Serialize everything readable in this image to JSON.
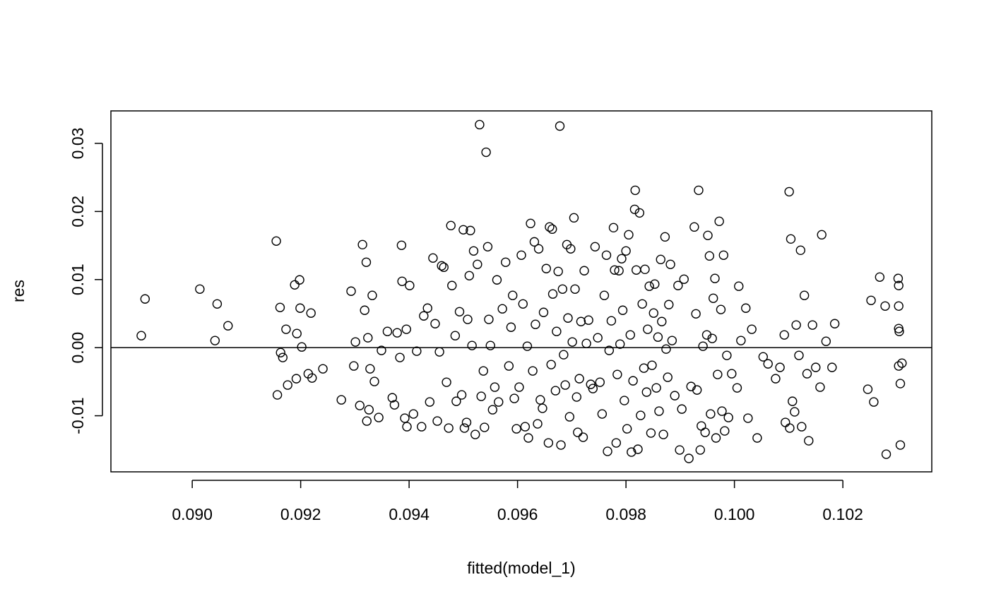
{
  "chart_data": {
    "type": "scatter",
    "x_label": "fitted(model_1)",
    "y_label": "res",
    "xlim": [
      0.0885,
      0.10364
    ],
    "ylim": [
      -0.01824,
      0.03477
    ],
    "xticks": [
      {
        "value": 0.09,
        "label": "0.090"
      },
      0.092,
      0.094,
      0.096,
      0.098,
      {
        "value": 0.1,
        "label": "0.100"
      },
      0.102
    ],
    "yticks": [
      -0.01,
      {
        "value": 0,
        "label": "0.00"
      },
      0.01,
      0.02,
      0.03
    ],
    "hline": 0,
    "color": "#000000",
    "x": [
      0.08906,
      0.08913,
      0.09014,
      0.09042,
      0.09046,
      0.09066,
      0.09155,
      0.09157,
      0.09162,
      0.09163,
      0.09167,
      0.09173,
      0.09176,
      0.09189,
      0.09192,
      0.09198,
      0.09193,
      0.09199,
      0.09202,
      0.09214,
      0.09219,
      0.09221,
      0.09241,
      0.09275,
      0.09293,
      0.09298,
      0.09301,
      0.09309,
      0.09314,
      0.09318,
      0.09321,
      0.09322,
      0.09324,
      0.09326,
      0.09328,
      0.09332,
      0.09336,
      0.09344,
      0.09349,
      0.0936,
      0.09369,
      0.09373,
      0.09378,
      0.09383,
      0.09386,
      0.09387,
      0.09392,
      0.09395,
      0.09396,
      0.09401,
      0.09408,
      0.09414,
      0.09423,
      0.09427,
      0.09434,
      0.09438,
      0.09444,
      0.09448,
      0.09452,
      0.09456,
      0.0946,
      0.09464,
      0.09469,
      0.09473,
      0.09477,
      0.09479,
      0.09485,
      0.09487,
      0.09493,
      0.09497,
      0.095,
      0.09502,
      0.09506,
      0.09508,
      0.09511,
      0.09513,
      0.09516,
      0.09519,
      0.09522,
      0.09526,
      0.0953,
      0.09533,
      0.09537,
      0.09539,
      0.09542,
      0.09545,
      0.09547,
      0.0955,
      0.09554,
      0.09558,
      0.09562,
      0.09565,
      0.09572,
      0.09578,
      0.09584,
      0.09588,
      0.09591,
      0.09594,
      0.09598,
      0.09603,
      0.09607,
      0.0961,
      0.09614,
      0.09618,
      0.0962,
      0.09624,
      0.09628,
      0.09631,
      0.09633,
      0.09637,
      0.09639,
      0.09642,
      0.09646,
      0.09648,
      0.09653,
      0.09657,
      0.09659,
      0.09662,
      0.09664,
      0.09665,
      0.0967,
      0.09672,
      0.09675,
      0.09678,
      0.0968,
      0.09683,
      0.09685,
      0.09688,
      0.09691,
      0.09693,
      0.09696,
      0.09698,
      0.09701,
      0.09704,
      0.09706,
      0.09709,
      0.09711,
      0.09714,
      0.09717,
      0.09721,
      0.09723,
      0.09727,
      0.09731,
      0.09735,
      0.09739,
      0.09743,
      0.09748,
      0.09752,
      0.09756,
      0.0976,
      0.09764,
      0.09766,
      0.09769,
      0.09773,
      0.09777,
      0.09779,
      0.09782,
      0.09784,
      0.09787,
      0.09789,
      0.09792,
      0.09794,
      0.09797,
      0.098,
      0.09802,
      0.09805,
      0.09808,
      0.0981,
      0.09813,
      0.09816,
      0.09817,
      0.09819,
      0.09822,
      0.09825,
      0.09827,
      0.0983,
      0.09833,
      0.09835,
      0.09838,
      0.0984,
      0.09843,
      0.09846,
      0.09848,
      0.09851,
      0.09853,
      0.09856,
      0.09859,
      0.09861,
      0.09864,
      0.09866,
      0.09869,
      0.09872,
      0.09874,
      0.09877,
      0.09879,
      0.09882,
      0.09885,
      0.0989,
      0.09896,
      0.09899,
      0.09903,
      0.09907,
      0.09916,
      0.0992,
      0.09926,
      0.09929,
      0.09931,
      0.09934,
      0.09937,
      0.09939,
      0.09942,
      0.09946,
      0.09949,
      0.09951,
      0.09954,
      0.09956,
      0.09959,
      0.09961,
      0.09964,
      0.09966,
      0.09969,
      0.09972,
      0.09975,
      0.09977,
      0.0998,
      0.09982,
      0.09986,
      0.09989,
      0.09995,
      0.10005,
      0.10008,
      0.10012,
      0.10021,
      0.10025,
      0.10032,
      0.10042,
      0.10053,
      0.10062,
      0.10076,
      0.10084,
      0.10092,
      0.10094,
      0.10101,
      0.10102,
      0.10104,
      0.10107,
      0.10111,
      0.10114,
      0.10119,
      0.10122,
      0.10124,
      0.10129,
      0.10134,
      0.10137,
      0.10144,
      0.1015,
      0.10158,
      0.10161,
      0.10169,
      0.1018,
      0.10185,
      0.10246,
      0.10252,
      0.10257,
      0.10268,
      0.10278,
      0.1028,
      0.10302,
      0.10303,
      0.10303,
      0.10303,
      0.10304,
      0.10303,
      0.10306,
      0.10306,
      0.10309
    ],
    "y": [
      0.00176,
      0.00715,
      0.0086,
      0.00104,
      0.00642,
      0.00321,
      0.01565,
      -0.00694,
      0.0059,
      -0.00073,
      -0.00145,
      0.0027,
      -0.00549,
      0.00922,
      -0.00456,
      0.00995,
      0.00207,
      0.0058,
      0.0001,
      -0.00383,
      0.00508,
      -0.00446,
      -0.00311,
      -0.00767,
      0.00829,
      -0.00269,
      0.00083,
      -0.0085,
      0.01513,
      0.00549,
      0.01254,
      -0.01078,
      0.00145,
      -0.00912,
      -0.00311,
      0.00767,
      -0.00497,
      -0.01026,
      -0.00041,
      0.00238,
      -0.00736,
      -0.0084,
      0.00218,
      -0.00145,
      0.01503,
      0.00974,
      -0.01036,
      0.0027,
      -0.01161,
      0.00912,
      -0.00974,
      -0.00052,
      -0.01161,
      0.00466,
      0.0058,
      -0.00798,
      0.01316,
      0.00352,
      -0.01078,
      -0.00062,
      0.01202,
      0.01181,
      -0.00508,
      -0.01181,
      0.01793,
      0.00912,
      0.00176,
      -0.00788,
      0.00528,
      -0.00694,
      0.01731,
      -0.01181,
      -0.01098,
      0.00415,
      0.01057,
      0.0172,
      0.00031,
      0.0142,
      -0.01275,
      0.01223,
      0.03275,
      -0.00715,
      -0.00342,
      -0.01171,
      0.0287,
      0.01482,
      0.00415,
      0.00031,
      -0.00912,
      -0.0058,
      0.00995,
      -0.00798,
      0.0057,
      0.01254,
      -0.00269,
      0.003,
      0.00767,
      -0.00746,
      -0.01192,
      -0.0058,
      0.01358,
      0.00642,
      -0.01161,
      0.00021,
      -0.01326,
      0.01824,
      -0.00342,
      0.01554,
      0.00342,
      -0.01119,
      0.01451,
      -0.00767,
      -0.00891,
      0.00518,
      0.01161,
      -0.01399,
      0.01772,
      -0.00249,
      0.01741,
      0.00788,
      -0.00632,
      0.00238,
      0.01119,
      0.03254,
      -0.0143,
      0.0086,
      -0.00104,
      -0.00549,
      0.01513,
      0.00435,
      -0.01016,
      0.01451,
      0.00083,
      0.01907,
      0.0086,
      -0.00725,
      -0.01244,
      -0.00456,
      0.00383,
      -0.01316,
      0.0113,
      0.00062,
      0.00404,
      -0.00539,
      -0.00601,
      0.01482,
      0.00145,
      -0.00508,
      -0.00974,
      0.00767,
      0.01358,
      -0.01523,
      -0.00041,
      0.00394,
      0.01762,
      0.0114,
      -0.01399,
      -0.00394,
      0.0113,
      0.00052,
      0.01306,
      0.00549,
      -0.00777,
      0.0142,
      -0.01192,
      0.01658,
      0.00187,
      -0.01534,
      -0.00487,
      0.02031,
      0.02311,
      0.0114,
      -0.01492,
      0.01979,
      -0.00995,
      0.00642,
      -0.00301,
      0.0115,
      -0.00653,
      0.0027,
      0.00902,
      -0.01254,
      -0.00259,
      0.00508,
      0.00933,
      -0.00591,
      0.00155,
      -0.00933,
      0.01295,
      0.00383,
      -0.01275,
      0.01627,
      -0.00021,
      -0.00435,
      0.00632,
      0.01223,
      0.00104,
      -0.00705,
      0.00912,
      -0.01503,
      -0.00902,
      0.01005,
      -0.01627,
      -0.0057,
      0.01772,
      0.00497,
      -0.00622,
      0.02311,
      -0.01503,
      -0.0115,
      0.00021,
      -0.01244,
      0.00187,
      0.01648,
      0.01347,
      -0.00974,
      0.00135,
      0.00725,
      0.01016,
      -0.01326,
      -0.00394,
      0.01855,
      0.0056,
      -0.00933,
      0.01358,
      -0.01223,
      -0.00114,
      -0.01026,
      -0.00383,
      -0.00591,
      0.00902,
      0.00104,
      0.0058,
      -0.01036,
      0.0027,
      -0.01326,
      -0.00135,
      -0.00238,
      -0.00456,
      -0.0029,
      0.00187,
      -0.01098,
      0.0229,
      -0.01181,
      0.01596,
      -0.00788,
      -0.00943,
      0.00332,
      -0.00114,
      0.0143,
      -0.01161,
      0.00767,
      -0.00383,
      -0.01368,
      0.00332,
      -0.0029,
      -0.0058,
      0.01658,
      0.00093,
      -0.0029,
      0.00352,
      -0.00611,
      0.00694,
      -0.00798,
      0.01036,
      0.00611,
      -0.01565,
      0.01016,
      0.00912,
      0.00611,
      0.0028,
      0.00238,
      -0.00269,
      -0.00528,
      -0.0143,
      -0.00228
    ]
  }
}
